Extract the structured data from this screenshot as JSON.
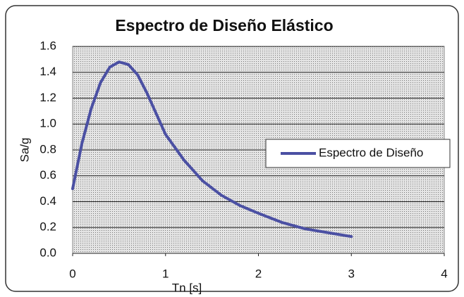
{
  "chart_data": {
    "type": "line",
    "title": "Espectro de Diseño Elástico",
    "x_label": "Tn [s]",
    "y_label": "Sa/g",
    "x": [
      0,
      0.1,
      0.2,
      0.3,
      0.4,
      0.5,
      0.6,
      0.7,
      0.8,
      0.9,
      1.0,
      1.2,
      1.4,
      1.6,
      1.8,
      2.0,
      2.25,
      2.5,
      2.75,
      3.0
    ],
    "series": [
      {
        "name": "Espectro de Diseño",
        "color": "#4b50a3",
        "values": [
          0.5,
          0.85,
          1.12,
          1.32,
          1.44,
          1.48,
          1.46,
          1.38,
          1.24,
          1.08,
          0.92,
          0.72,
          0.56,
          0.45,
          0.37,
          0.31,
          0.24,
          0.19,
          0.16,
          0.13
        ]
      }
    ],
    "xlim": [
      0,
      4
    ],
    "xticks": [
      0,
      1,
      2,
      3,
      4
    ],
    "ylim": [
      0,
      1.6
    ],
    "yticks": [
      {
        "value": 0,
        "label": "0.0"
      },
      0.2,
      0.4,
      0.6,
      0.8,
      {
        "value": 1,
        "label": "1.0"
      },
      1.2,
      1.4,
      1.6
    ],
    "grid": true,
    "legend": "right"
  }
}
